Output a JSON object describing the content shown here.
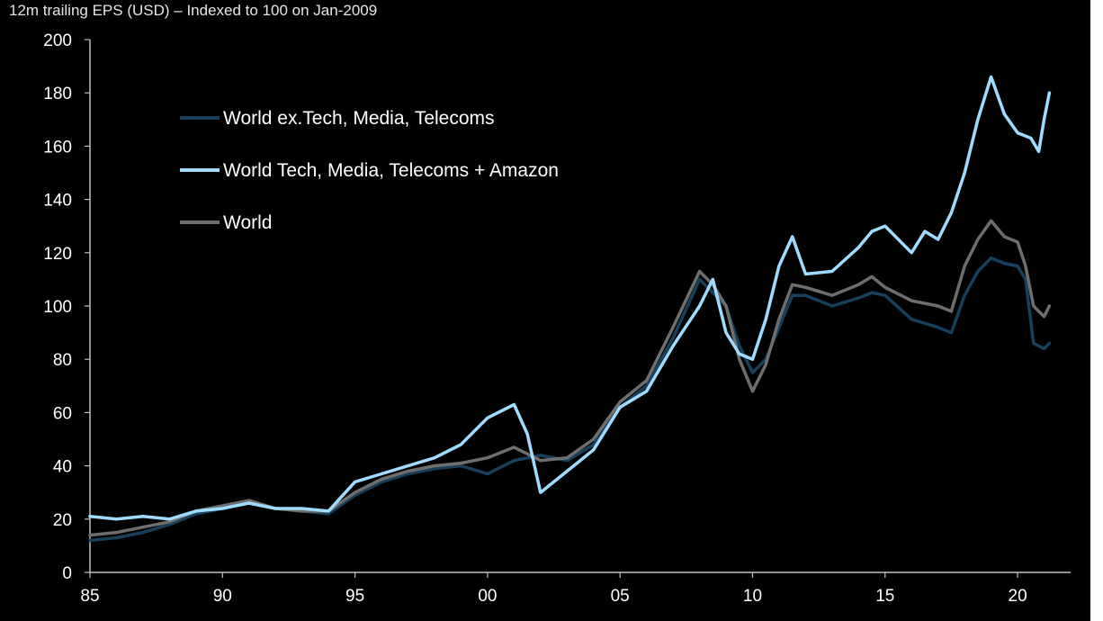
{
  "chart_data": {
    "type": "line",
    "title": "12m trailing EPS (USD) – Indexed to 100 on Jan-2009",
    "xlabel": "",
    "ylabel": "",
    "xlim": [
      1985,
      2022
    ],
    "ylim": [
      0,
      200
    ],
    "y_ticks": [
      0,
      20,
      40,
      60,
      80,
      100,
      120,
      140,
      160,
      180,
      200
    ],
    "x_ticks": [
      {
        "value": 1985,
        "label": "85"
      },
      {
        "value": 1990,
        "label": "90"
      },
      {
        "value": 1995,
        "label": "95"
      },
      {
        "value": 2000,
        "label": "00"
      },
      {
        "value": 2005,
        "label": "05"
      },
      {
        "value": 2010,
        "label": "10"
      },
      {
        "value": 2015,
        "label": "15"
      },
      {
        "value": 2020,
        "label": "20"
      }
    ],
    "grid": false,
    "legend_position": "top-left",
    "colors": {
      "background": "#000000",
      "axis": "#bfbfbf"
    },
    "series": [
      {
        "name": "World ex.Tech, Media, Telecoms",
        "color": "#17405c",
        "x": [
          1985,
          1986,
          1987,
          1988,
          1989,
          1990,
          1991,
          1992,
          1993,
          1994,
          1995,
          1996,
          1997,
          1998,
          1999,
          2000,
          2001,
          2002,
          2003,
          2004,
          2005,
          2006,
          2007,
          2008,
          2008.5,
          2009,
          2009.5,
          2010,
          2010.5,
          2011,
          2011.5,
          2012,
          2013,
          2014,
          2014.5,
          2015,
          2016,
          2017,
          2017.5,
          2018,
          2018.5,
          2019,
          2019.5,
          2020,
          2020.3,
          2020.6,
          2021,
          2021.2
        ],
        "y": [
          12,
          13,
          15,
          18,
          22,
          24,
          26,
          24,
          23,
          22,
          29,
          34,
          37,
          39,
          40,
          37,
          42,
          44,
          42,
          48,
          62,
          70,
          88,
          110,
          105,
          100,
          85,
          75,
          80,
          92,
          104,
          104,
          100,
          103,
          105,
          104,
          95,
          92,
          90,
          104,
          113,
          118,
          116,
          115,
          110,
          86,
          84,
          86
        ]
      },
      {
        "name": "World Tech, Media, Telecoms + Amazon",
        "color": "#9fdcff",
        "x": [
          1985,
          1986,
          1987,
          1988,
          1989,
          1990,
          1991,
          1992,
          1993,
          1994,
          1995,
          1996,
          1997,
          1998,
          1999,
          2000,
          2001,
          2001.5,
          2002,
          2003,
          2004,
          2005,
          2006,
          2007,
          2008,
          2008.5,
          2009,
          2009.5,
          2010,
          2010.5,
          2011,
          2011.5,
          2012,
          2013,
          2014,
          2014.5,
          2015,
          2016,
          2016.5,
          2017,
          2017.5,
          2018,
          2018.5,
          2019,
          2019.5,
          2020,
          2020.5,
          2020.8,
          2021,
          2021.2
        ],
        "y": [
          21,
          20,
          21,
          20,
          23,
          24,
          26,
          24,
          24,
          23,
          34,
          37,
          40,
          43,
          48,
          58,
          63,
          52,
          30,
          38,
          46,
          62,
          68,
          85,
          100,
          110,
          90,
          82,
          80,
          95,
          115,
          126,
          112,
          113,
          122,
          128,
          130,
          120,
          128,
          125,
          135,
          150,
          170,
          186,
          172,
          165,
          163,
          158,
          170,
          180
        ]
      },
      {
        "name": "World",
        "color": "#6e6e6e",
        "x": [
          1985,
          1986,
          1987,
          1988,
          1989,
          1990,
          1991,
          1992,
          1993,
          1994,
          1995,
          1996,
          1997,
          1998,
          1999,
          2000,
          2001,
          2002,
          2003,
          2004,
          2005,
          2006,
          2007,
          2008,
          2008.5,
          2009,
          2009.5,
          2010,
          2010.5,
          2011,
          2011.5,
          2012,
          2013,
          2014,
          2014.5,
          2015,
          2016,
          2017,
          2017.5,
          2018,
          2018.5,
          2019,
          2019.5,
          2020,
          2020.3,
          2020.6,
          2021,
          2021.2
        ],
        "y": [
          14,
          15,
          17,
          19,
          23,
          25,
          27,
          24,
          23,
          23,
          30,
          35,
          38,
          40,
          41,
          43,
          47,
          42,
          43,
          50,
          64,
          72,
          92,
          113,
          108,
          100,
          80,
          68,
          78,
          95,
          108,
          107,
          104,
          108,
          111,
          107,
          102,
          100,
          98,
          115,
          125,
          132,
          126,
          124,
          115,
          100,
          96,
          100
        ]
      }
    ]
  }
}
